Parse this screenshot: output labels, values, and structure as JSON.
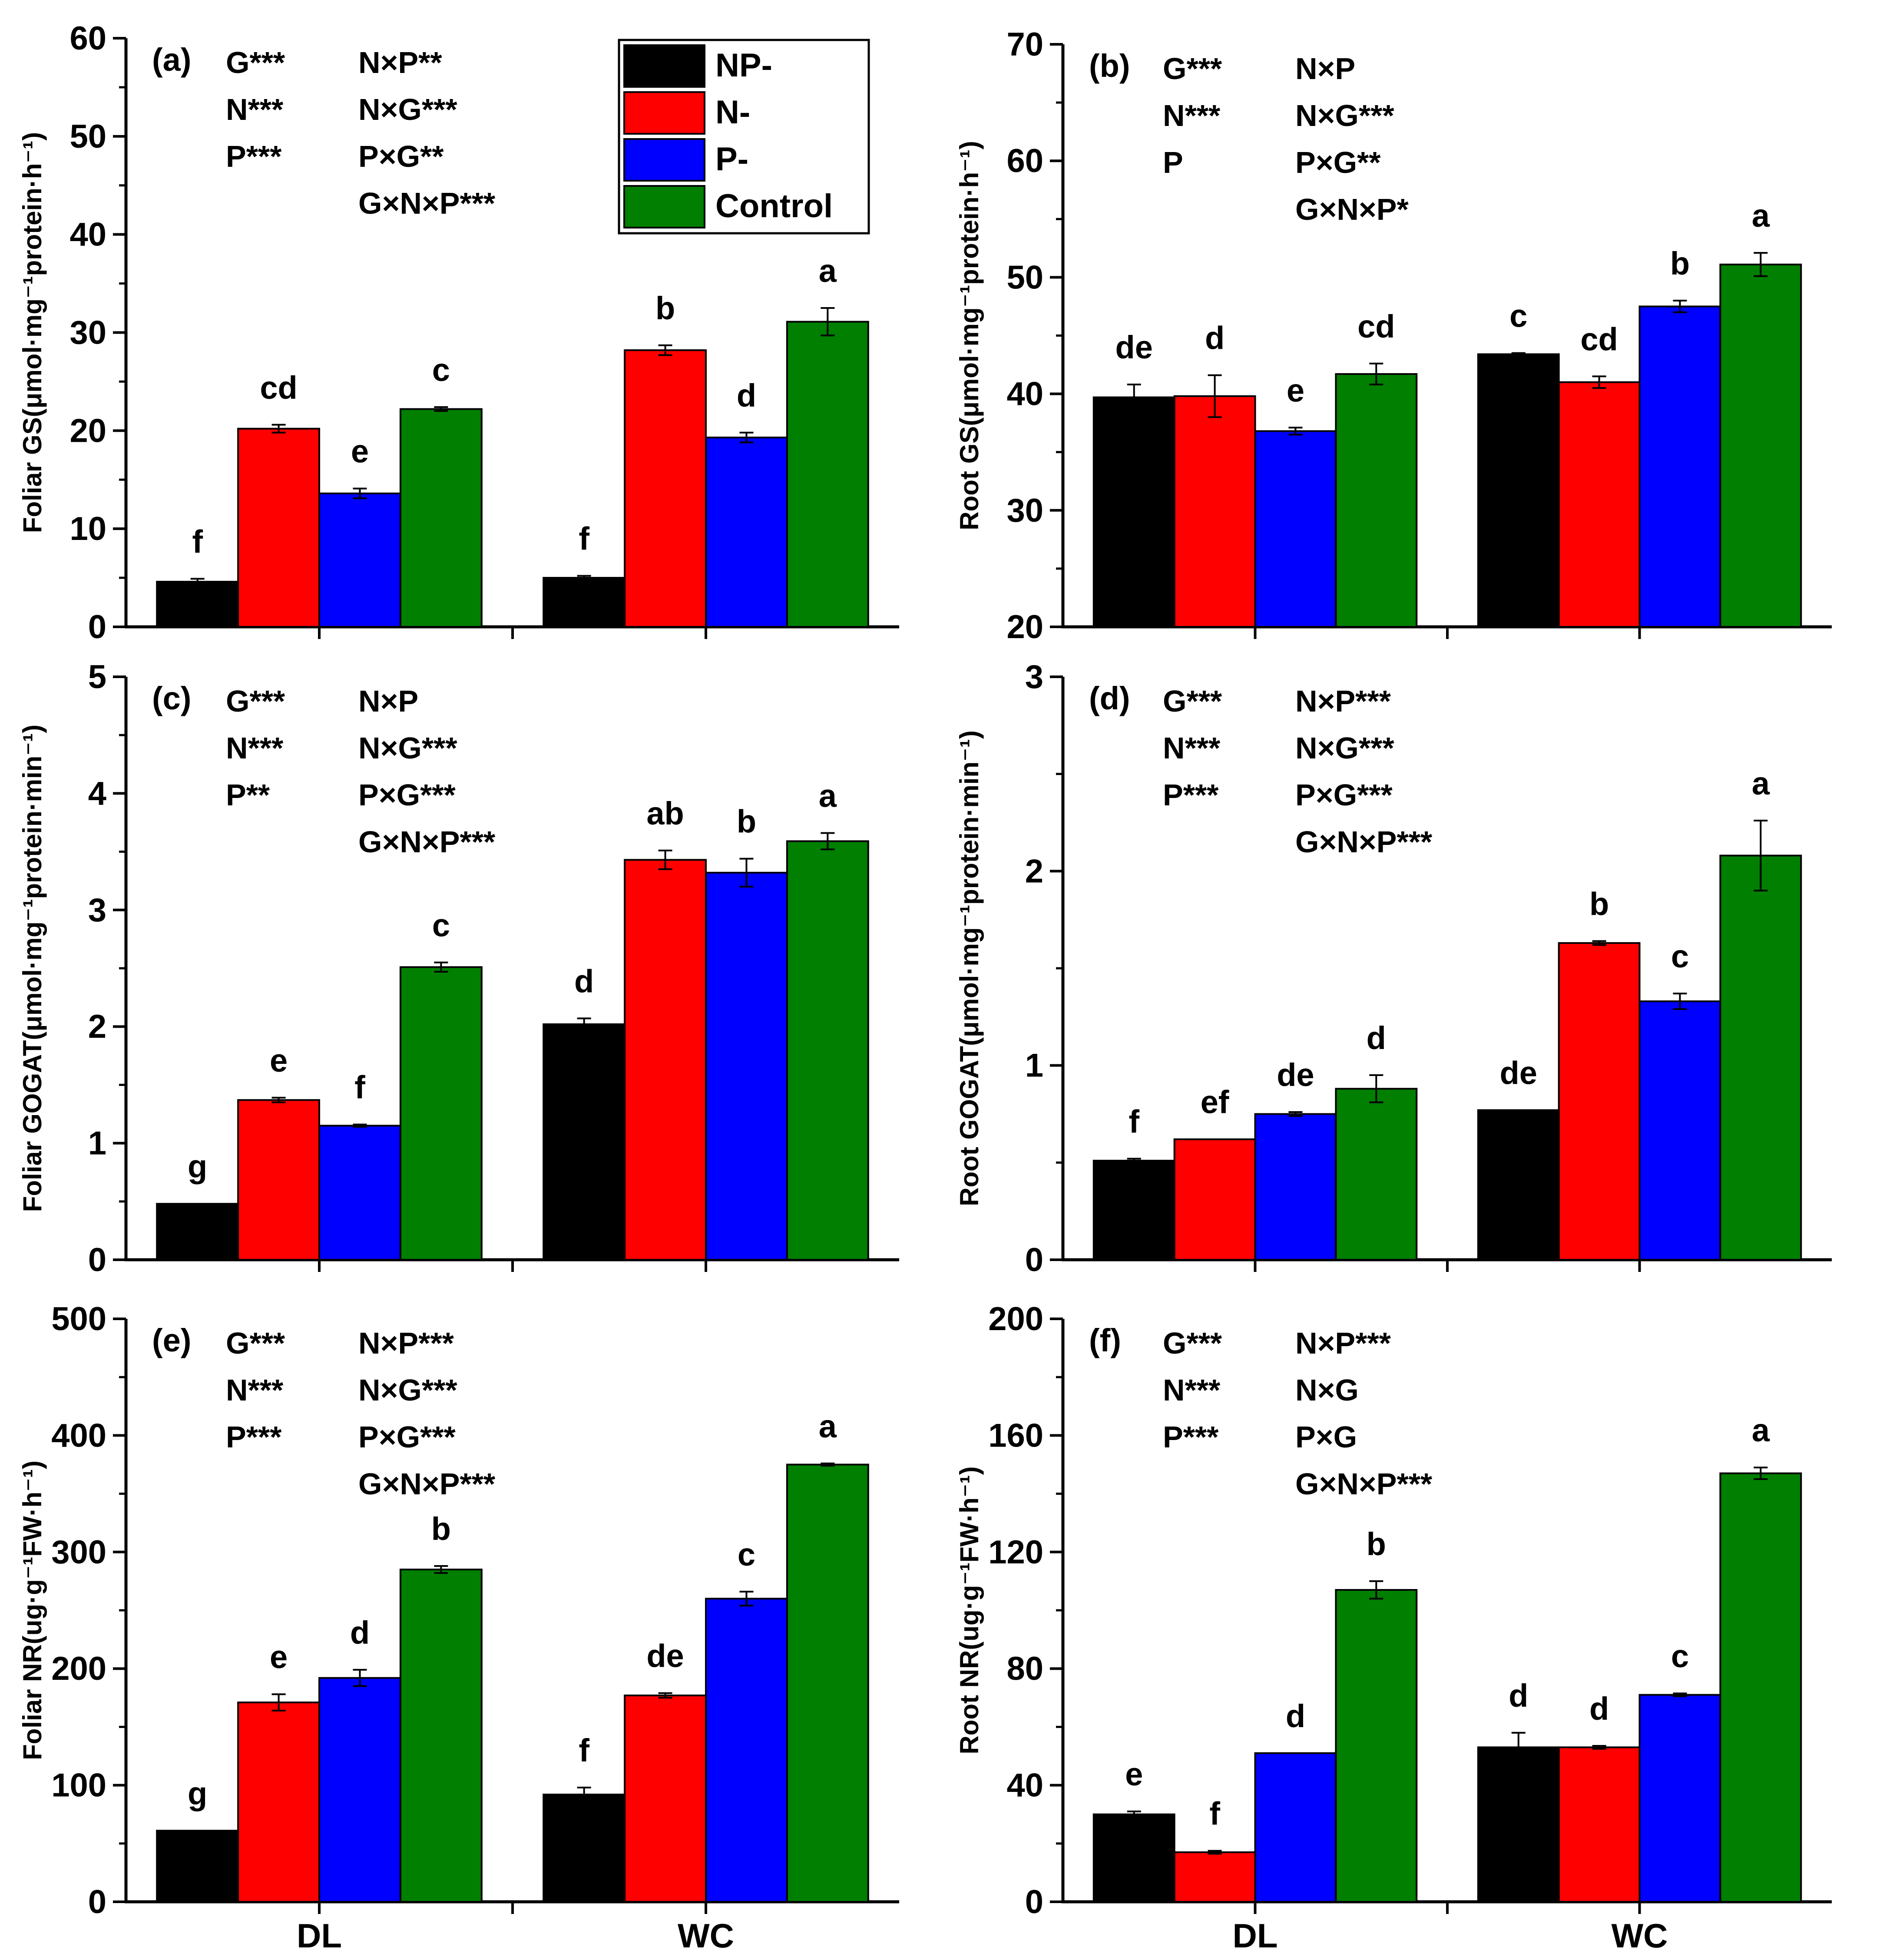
{
  "figure": {
    "series_names": [
      "NP-",
      "N-",
      "P-",
      "Control"
    ],
    "colors": {
      "NP-": "#000000",
      "N-": "#ff0000",
      "P-": "#0000ff",
      "Control": "#007f00"
    },
    "categories": [
      "DL",
      "WC"
    ]
  },
  "chart_data": [
    {
      "type": "bar",
      "panel_label": "(a)",
      "ylabel": "Foliar GS(μmol·mg⁻¹protein·h⁻¹)",
      "ylim": [
        0,
        60
      ],
      "yticks": [
        0,
        10,
        20,
        30,
        40,
        50,
        60
      ],
      "categories": [
        "DL",
        "WC"
      ],
      "series": [
        {
          "name": "NP-",
          "values": [
            4.6,
            5.0
          ],
          "errors": [
            0.3,
            0.2
          ],
          "letters": [
            "f",
            "f"
          ]
        },
        {
          "name": "N-",
          "values": [
            20.2,
            28.2
          ],
          "errors": [
            0.4,
            0.5
          ],
          "letters": [
            "cd",
            "b"
          ]
        },
        {
          "name": "P-",
          "values": [
            13.6,
            19.3
          ],
          "errors": [
            0.5,
            0.5
          ],
          "letters": [
            "e",
            "d"
          ]
        },
        {
          "name": "Control",
          "values": [
            22.2,
            31.1
          ],
          "errors": [
            0.2,
            1.4
          ],
          "letters": [
            "c",
            "a"
          ]
        }
      ],
      "annotations": [
        [
          "G***",
          "N***",
          "P***",
          ""
        ],
        [
          "N×P**",
          "N×G***",
          "P×G**",
          "G×N×P***"
        ]
      ],
      "show_xlabels": false,
      "show_legend": true
    },
    {
      "type": "bar",
      "panel_label": "(b)",
      "ylabel": "Root GS(μmol·mg⁻¹protein·h⁻¹)",
      "ylim": [
        20,
        70
      ],
      "yticks": [
        20,
        30,
        40,
        50,
        60,
        70
      ],
      "categories": [
        "DL",
        "WC"
      ],
      "series": [
        {
          "name": "NP-",
          "values": [
            39.7,
            43.4
          ],
          "errors": [
            1.1,
            0.1
          ],
          "letters": [
            "de",
            "c"
          ]
        },
        {
          "name": "N-",
          "values": [
            39.8,
            41.0
          ],
          "errors": [
            1.8,
            0.5
          ],
          "letters": [
            "d",
            "cd"
          ]
        },
        {
          "name": "P-",
          "values": [
            36.8,
            47.5
          ],
          "errors": [
            0.3,
            0.5
          ],
          "letters": [
            "e",
            "b"
          ]
        },
        {
          "name": "Control",
          "values": [
            41.7,
            51.1
          ],
          "errors": [
            0.9,
            1.0
          ],
          "letters": [
            "cd",
            "a"
          ]
        }
      ],
      "annotations": [
        [
          "G***",
          "N***",
          "P",
          ""
        ],
        [
          "N×P",
          "N×G***",
          "P×G**",
          "G×N×P*"
        ]
      ],
      "show_xlabels": false,
      "show_legend": false
    },
    {
      "type": "bar",
      "panel_label": "(c)",
      "ylabel": "Foliar GOGAT(μmol·mg⁻¹protein·min⁻¹)",
      "ylim": [
        0,
        5
      ],
      "yticks": [
        0,
        1,
        2,
        3,
        4,
        5
      ],
      "categories": [
        "DL",
        "WC"
      ],
      "series": [
        {
          "name": "NP-",
          "values": [
            0.48,
            2.02
          ],
          "errors": [
            0.0,
            0.05
          ],
          "letters": [
            "g",
            "d"
          ]
        },
        {
          "name": "N-",
          "values": [
            1.37,
            3.43
          ],
          "errors": [
            0.02,
            0.08
          ],
          "letters": [
            "e",
            "ab"
          ]
        },
        {
          "name": "P-",
          "values": [
            1.15,
            3.32
          ],
          "errors": [
            0.01,
            0.12
          ],
          "letters": [
            "f",
            "b"
          ]
        },
        {
          "name": "Control",
          "values": [
            2.51,
            3.59
          ],
          "errors": [
            0.04,
            0.07
          ],
          "letters": [
            "c",
            "a"
          ]
        }
      ],
      "annotations": [
        [
          "G***",
          "N***",
          "P**",
          ""
        ],
        [
          "N×P",
          "N×G***",
          "P×G***",
          "G×N×P***"
        ]
      ],
      "show_xlabels": false,
      "show_legend": false
    },
    {
      "type": "bar",
      "panel_label": "(d)",
      "ylabel": "Root GOGAT(μmol·mg⁻¹protein·min⁻¹)",
      "ylim": [
        0,
        3
      ],
      "yticks": [
        0,
        1,
        2,
        3
      ],
      "categories": [
        "DL",
        "WC"
      ],
      "series": [
        {
          "name": "NP-",
          "values": [
            0.51,
            0.77
          ],
          "errors": [
            0.01,
            0.0
          ],
          "letters": [
            "f",
            "de"
          ]
        },
        {
          "name": "N-",
          "values": [
            0.62,
            1.63
          ],
          "errors": [
            0.0,
            0.01
          ],
          "letters": [
            "ef",
            "b"
          ]
        },
        {
          "name": "P-",
          "values": [
            0.75,
            1.33
          ],
          "errors": [
            0.01,
            0.04
          ],
          "letters": [
            "de",
            "c"
          ]
        },
        {
          "name": "Control",
          "values": [
            0.88,
            2.08
          ],
          "errors": [
            0.07,
            0.18
          ],
          "letters": [
            "d",
            "a"
          ]
        }
      ],
      "annotations": [
        [
          "G***",
          "N***",
          "P***",
          ""
        ],
        [
          "N×P***",
          "N×G***",
          "P×G***",
          "G×N×P***"
        ]
      ],
      "show_xlabels": false,
      "show_legend": false
    },
    {
      "type": "bar",
      "panel_label": "(e)",
      "ylabel": "Foliar NR(ug·g⁻¹FW·h⁻¹)",
      "ylim": [
        0,
        500
      ],
      "yticks": [
        0,
        100,
        200,
        300,
        400,
        500
      ],
      "categories": [
        "DL",
        "WC"
      ],
      "series": [
        {
          "name": "NP-",
          "values": [
            61,
            92
          ],
          "errors": [
            0,
            6
          ],
          "letters": [
            "g",
            "f"
          ]
        },
        {
          "name": "N-",
          "values": [
            171,
            177
          ],
          "errors": [
            7,
            2
          ],
          "letters": [
            "e",
            "de"
          ]
        },
        {
          "name": "P-",
          "values": [
            192,
            260
          ],
          "errors": [
            7,
            6
          ],
          "letters": [
            "d",
            "c"
          ]
        },
        {
          "name": "Control",
          "values": [
            285,
            375
          ],
          "errors": [
            3,
            1
          ],
          "letters": [
            "b",
            "a"
          ]
        }
      ],
      "annotations": [
        [
          "G***",
          "N***",
          "P***",
          ""
        ],
        [
          "N×P***",
          "N×G***",
          "P×G***",
          "G×N×P***"
        ]
      ],
      "show_xlabels": true,
      "show_legend": false
    },
    {
      "type": "bar",
      "panel_label": "(f)",
      "ylabel": "Root NR(ug·g⁻¹FW·h⁻¹)",
      "ylim": [
        0,
        200
      ],
      "yticks": [
        0,
        40,
        80,
        120,
        160,
        200
      ],
      "categories": [
        "DL",
        "WC"
      ],
      "series": [
        {
          "name": "NP-",
          "values": [
            30,
            53
          ],
          "errors": [
            1,
            5
          ],
          "letters": [
            "e",
            "d"
          ]
        },
        {
          "name": "N-",
          "values": [
            17,
            53
          ],
          "errors": [
            0.5,
            0.5
          ],
          "letters": [
            "f",
            "d"
          ]
        },
        {
          "name": "P-",
          "values": [
            51,
            71
          ],
          "errors": [
            0,
            0.5
          ],
          "letters": [
            "d",
            "c"
          ]
        },
        {
          "name": "Control",
          "values": [
            107,
            147
          ],
          "errors": [
            3,
            2
          ],
          "letters": [
            "b",
            "a"
          ]
        }
      ],
      "annotations": [
        [
          "G***",
          "N***",
          "P***",
          ""
        ],
        [
          "N×P***",
          "N×G",
          "P×G",
          "G×N×P***"
        ]
      ],
      "show_xlabels": true,
      "show_legend": false
    }
  ]
}
